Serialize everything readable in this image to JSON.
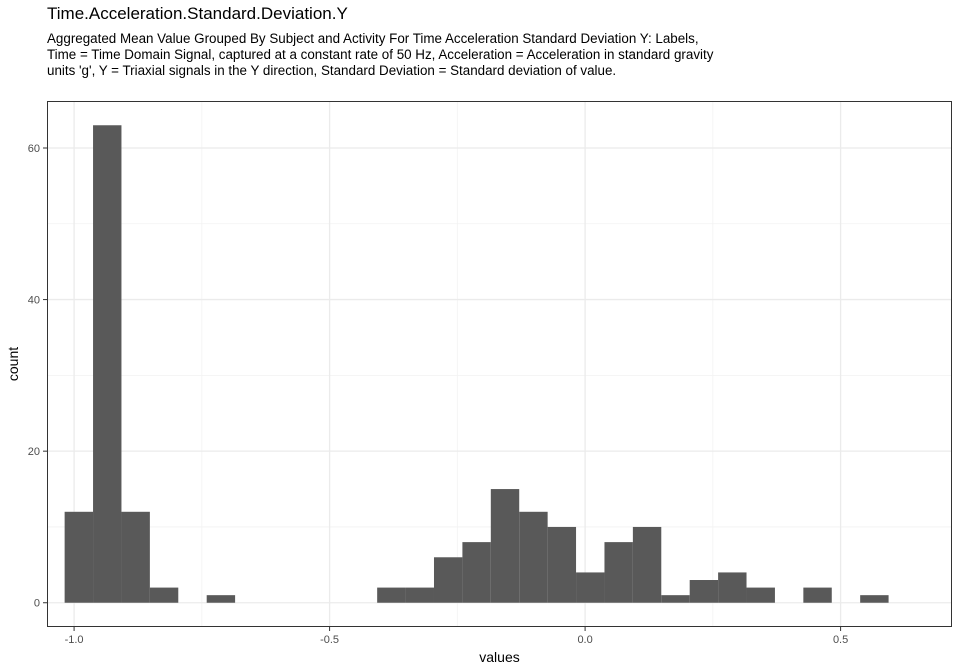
{
  "chart_data": {
    "type": "bar",
    "title": "Time.Acceleration.Standard.Deviation.Y",
    "subtitle": "Aggregated Mean Value Grouped By Subject and Activity For Time Acceleration Standard Deviation Y: Labels, Time = Time Domain Signal, captured at a constant rate of 50 Hz, Acceleration = Acceleration in standard gravity units 'g', Y = Triaxial signals in the Y direction, Standard Deviation = Standard deviation of value.",
    "xlabel": "values",
    "ylabel": "count",
    "xlim": [
      -1.053,
      0.718
    ],
    "ylim": [
      -3.2,
      66.2
    ],
    "x_ticks": [
      {
        "value": -1.0,
        "label": "-1.0"
      },
      {
        "value": -0.5,
        "label": "-0.5"
      },
      {
        "value": 0.0,
        "label": "0.0"
      },
      {
        "value": 0.5,
        "label": "0.5"
      }
    ],
    "y_ticks": [
      {
        "value": 0,
        "label": "0"
      },
      {
        "value": 20,
        "label": "20"
      },
      {
        "value": 40,
        "label": "40"
      },
      {
        "value": 60,
        "label": "60"
      }
    ],
    "bin_width": 0.0556,
    "bin_starts": [
      -1.0185,
      -0.9629,
      -0.9073,
      -0.8517,
      -0.7961,
      -0.7405,
      -0.6849,
      -0.6293,
      -0.5737,
      -0.5181,
      -0.4625,
      -0.4069,
      -0.3513,
      -0.2957,
      -0.2401,
      -0.1845,
      -0.1289,
      -0.0733,
      -0.0177,
      0.0379,
      0.0935,
      0.1491,
      0.2047,
      0.2603,
      0.3159,
      0.3715,
      0.4271,
      0.4827,
      0.5383,
      0.5939
    ],
    "counts": [
      12,
      63,
      12,
      2,
      0,
      1,
      0,
      0,
      0,
      0,
      0,
      2,
      2,
      6,
      8,
      15,
      12,
      10,
      4,
      8,
      10,
      1,
      3,
      4,
      2,
      0,
      2,
      0,
      1,
      0
    ],
    "bar_color": "#595959",
    "grid": true,
    "legend": "none"
  }
}
